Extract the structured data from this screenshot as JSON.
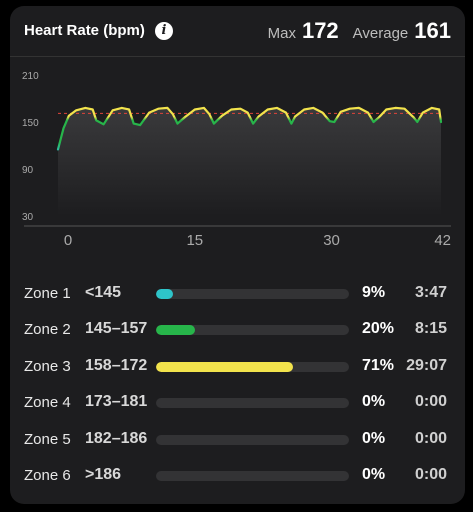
{
  "header": {
    "title": "Heart Rate (bpm)",
    "max_label": "Max",
    "max_value": "172",
    "avg_label": "Average",
    "avg_value": "161"
  },
  "chart_data": {
    "type": "line",
    "title": "Heart Rate (bpm)",
    "xlabel": "",
    "ylabel": "",
    "x_ticks": [
      "0",
      "15",
      "30",
      "42"
    ],
    "y_ticks": [
      "210",
      "150",
      "90",
      "30"
    ],
    "xlim": [
      0,
      42
    ],
    "ylim": [
      30,
      210
    ],
    "average_line": 161,
    "grid": false,
    "series": [
      {
        "x": [
          0,
          0.6,
          1.2,
          2,
          3,
          3.8,
          4.2,
          5,
          6,
          7,
          7.8,
          8.3,
          9,
          10,
          11,
          12,
          12.6,
          13.1,
          14,
          15,
          16,
          16.6,
          17.1,
          18,
          19,
          20,
          20.8,
          21.4,
          22,
          23,
          24,
          25,
          25.6,
          26,
          27,
          28,
          29,
          29.8,
          30.3,
          31,
          32,
          33,
          34,
          34.6,
          35.2,
          36,
          37,
          38,
          39,
          39.4,
          40,
          41,
          41.8,
          42
        ],
        "values": [
          115,
          142,
          158,
          165,
          168,
          166,
          152,
          147,
          165,
          168,
          166,
          148,
          146,
          162,
          167,
          168,
          160,
          148,
          157,
          166,
          168,
          160,
          148,
          158,
          166,
          167,
          162,
          148,
          157,
          166,
          168,
          162,
          148,
          157,
          166,
          168,
          162,
          151,
          150,
          163,
          167,
          168,
          162,
          150,
          156,
          166,
          168,
          167,
          156,
          150,
          162,
          168,
          166,
          150
        ]
      }
    ]
  },
  "zones": [
    {
      "name": "Zone 1",
      "range": "<145",
      "percent": "9%",
      "fraction": 0.09,
      "time": "3:47",
      "color": "#2ec4c9"
    },
    {
      "name": "Zone 2",
      "range": "145–157",
      "percent": "20%",
      "fraction": 0.2,
      "time": "8:15",
      "color": "#27b54a"
    },
    {
      "name": "Zone 3",
      "range": "158–172",
      "percent": "71%",
      "fraction": 0.71,
      "time": "29:07",
      "color": "#f2e34c"
    },
    {
      "name": "Zone 4",
      "range": "173–181",
      "percent": "0%",
      "fraction": 0,
      "time": "0:00",
      "color": "#f2a33a"
    },
    {
      "name": "Zone 5",
      "range": "182–186",
      "percent": "0%",
      "fraction": 0,
      "time": "0:00",
      "color": "#e8553a"
    },
    {
      "name": "Zone 6",
      "range": ">186",
      "percent": "0%",
      "fraction": 0,
      "time": "0:00",
      "color": "#d63a3a"
    }
  ]
}
